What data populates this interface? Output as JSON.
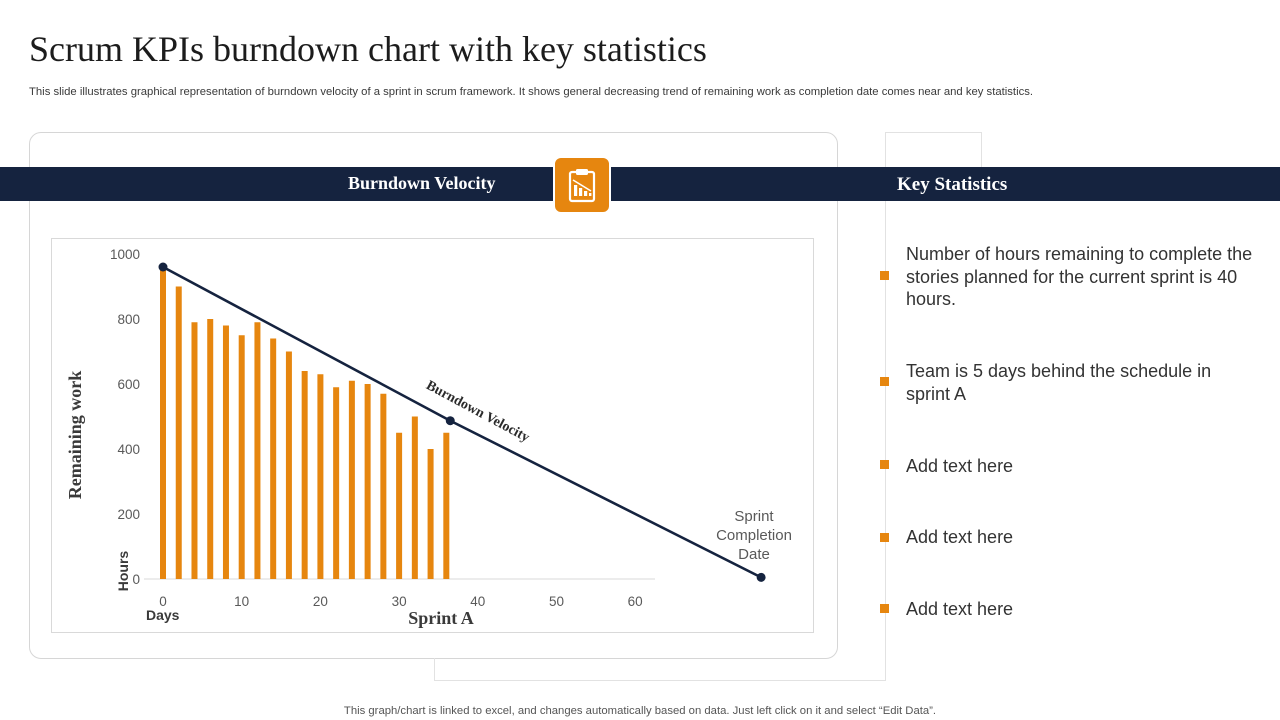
{
  "header": {
    "title": "Scrum KPIs burndown chart with key statistics",
    "subtitle": "This slide illustrates graphical representation of burndown velocity of a sprint in scrum framework. It shows general decreasing trend of remaining work as completion date comes near and key statistics."
  },
  "panels": {
    "left_label": "Burndown Velocity",
    "right_label": "Key Statistics",
    "badge_icon": "clipboard-bar-chart-icon"
  },
  "key_statistics": [
    "Number of hours remaining to complete the stories planned for the current sprint is 40 hours.",
    "Team is 5 days behind the schedule in sprint A",
    "Add text here",
    "Add text here",
    "Add text here"
  ],
  "footer": {
    "note": "This graph/chart is linked to excel,  and changes automatically based on data. Just left click on it and select “Edit Data”."
  },
  "colors": {
    "band": "#15233f",
    "accent": "#e6860f",
    "line": "#15233f"
  },
  "chart_data": {
    "type": "bar",
    "title": "",
    "xlabel": "Sprint A",
    "ylabel": "Remaining work",
    "x_unit_label": "Days",
    "y_unit_label": "Hours",
    "ylim": [
      0,
      1000
    ],
    "xlim": [
      0,
      75
    ],
    "y_ticks": [
      0,
      200,
      400,
      600,
      800,
      1000
    ],
    "x_ticks": [
      0,
      10,
      20,
      30,
      40,
      50,
      60
    ],
    "grid": false,
    "bars": {
      "x": [
        0,
        2,
        4,
        6,
        8,
        10,
        12,
        14,
        16,
        18,
        20,
        22,
        24,
        26,
        28,
        30,
        32,
        34,
        36
      ],
      "values": [
        960,
        900,
        790,
        800,
        780,
        750,
        790,
        740,
        700,
        640,
        630,
        590,
        610,
        600,
        570,
        450,
        500,
        400,
        450
      ]
    },
    "burndown_line": {
      "label": "Burndown Velocity",
      "points": [
        [
          0,
          960
        ],
        [
          36.5,
          487
        ],
        [
          76,
          5
        ]
      ]
    },
    "annotations": [
      {
        "text": "Sprint Completion Date",
        "lines": [
          "Sprint",
          "Completion",
          "Date"
        ],
        "x": 76,
        "y": 5
      }
    ]
  }
}
